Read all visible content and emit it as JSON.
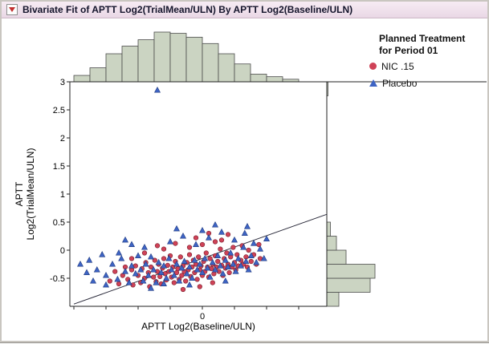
{
  "window": {
    "title": "Bivariate Fit of APTT Log2(TrialMean/ULN) By APTT Log2(Baseline/ULN)"
  },
  "legend": {
    "title_line1": "Planned Treatment",
    "title_line2": "for Period 01",
    "items": [
      {
        "label": "NIC .15",
        "marker": "circle",
        "color": "#cf4257"
      },
      {
        "label": "Placebo",
        "marker": "triangle",
        "color": "#3e64c4"
      }
    ]
  },
  "chart_data": {
    "type": "scatter",
    "title": "Bivariate Fit of APTT Log2(TrialMean/ULN) By APTT Log2(Baseline/ULN)",
    "xlabel": "APTT Log2(Baseline/ULN)",
    "ylabel_line1": "APTT",
    "ylabel_line2": "Log2(TrialMean/ULN)",
    "xlim": [
      -1.03,
      0.97
    ],
    "ylim": [
      -1.0,
      3.0
    ],
    "grid": false,
    "legend_position": "top-right",
    "colors": {
      "histogram_fill": "#cbd4c2",
      "histogram_stroke": "#4c4c4c",
      "fit_line": "#2a2a3a",
      "frame": "#222222"
    },
    "x_axis": {
      "label": "APTT Log2(Baseline/ULN)",
      "ticks": [
        -1,
        -0.75,
        -0.5,
        -0.25,
        0,
        0.25,
        0.5,
        0.75
      ],
      "tick_labels": [
        {
          "value": 0,
          "label": "0"
        }
      ]
    },
    "y_axis": {
      "ticks": [
        {
          "value": 3,
          "label": "3"
        },
        {
          "value": 2.5,
          "label": "2.5"
        },
        {
          "value": 2,
          "label": "2"
        },
        {
          "value": 1.5,
          "label": "1.5"
        },
        {
          "value": 1,
          "label": "1"
        },
        {
          "value": 0.5,
          "label": "0.5"
        },
        {
          "value": 0,
          "label": "0"
        },
        {
          "value": -0.5,
          "label": "-0.5"
        }
      ]
    },
    "fit_line": {
      "x1": -1.0,
      "y1": -0.96,
      "x2": 0.97,
      "y2": 0.64
    },
    "top_histogram": {
      "bin_start": -1.0,
      "bin_width": 0.125,
      "counts": [
        5,
        11,
        22,
        28,
        33,
        39,
        38,
        35,
        30,
        22,
        14,
        6,
        4,
        2
      ]
    },
    "right_histogram": {
      "bin_start": -1.0,
      "bin_width": 0.25,
      "counts": [
        10,
        36,
        40,
        16,
        8,
        3,
        0,
        0,
        0,
        0,
        0,
        0,
        0,
        0,
        0,
        1
      ]
    },
    "series": [
      {
        "name": "NIC .15",
        "marker": "circle",
        "color": "#cf4257",
        "edge_color": "#7a1f2d",
        "points": [
          [
            -0.72,
            -0.55
          ],
          [
            -0.68,
            -0.38
          ],
          [
            -0.65,
            -0.6
          ],
          [
            -0.62,
            -0.45
          ],
          [
            -0.6,
            -0.3
          ],
          [
            -0.58,
            -0.52
          ],
          [
            -0.55,
            -0.35
          ],
          [
            -0.54,
            -0.62
          ],
          [
            -0.52,
            -0.28
          ],
          [
            -0.5,
            -0.45
          ],
          [
            -0.48,
            -0.58
          ],
          [
            -0.47,
            -0.33
          ],
          [
            -0.45,
            -0.5
          ],
          [
            -0.44,
            -0.22
          ],
          [
            -0.42,
            -0.4
          ],
          [
            -0.41,
            -0.65
          ],
          [
            -0.4,
            -0.3
          ],
          [
            -0.38,
            -0.48
          ],
          [
            -0.37,
            -0.18
          ],
          [
            -0.36,
            -0.56
          ],
          [
            -0.35,
            -0.38
          ],
          [
            -0.34,
            -0.25
          ],
          [
            -0.33,
            -0.47
          ],
          [
            -0.32,
            -0.6
          ],
          [
            -0.31,
            -0.32
          ],
          [
            -0.3,
            -0.15
          ],
          [
            -0.29,
            -0.42
          ],
          [
            -0.28,
            -0.53
          ],
          [
            -0.27,
            -0.27
          ],
          [
            -0.26,
            -0.38
          ],
          [
            -0.25,
            -0.1
          ],
          [
            -0.24,
            -0.48
          ],
          [
            -0.23,
            -0.3
          ],
          [
            -0.22,
            -0.58
          ],
          [
            -0.21,
            -0.2
          ],
          [
            -0.2,
            -0.4
          ],
          [
            -0.19,
            -0.33
          ],
          [
            -0.18,
            -0.52
          ],
          [
            -0.17,
            -0.12
          ],
          [
            -0.16,
            -0.45
          ],
          [
            -0.15,
            -0.28
          ],
          [
            -0.14,
            -0.38
          ],
          [
            -0.13,
            -0.55
          ],
          [
            -0.12,
            -0.22
          ],
          [
            -0.11,
            -0.35
          ],
          [
            -0.1,
            -0.08
          ],
          [
            -0.09,
            -0.47
          ],
          [
            -0.08,
            -0.3
          ],
          [
            -0.07,
            -0.18
          ],
          [
            -0.06,
            -0.4
          ],
          [
            -0.05,
            -0.25
          ],
          [
            -0.04,
            -0.52
          ],
          [
            -0.03,
            -0.12
          ],
          [
            -0.02,
            -0.35
          ],
          [
            -0.01,
            -0.28
          ],
          [
            0,
            -0.45
          ],
          [
            0.01,
            -0.2
          ],
          [
            0.02,
            -0.38
          ],
          [
            0.03,
            -0.05
          ],
          [
            0.04,
            -0.3
          ],
          [
            0.05,
            -0.48
          ],
          [
            0.06,
            -0.15
          ],
          [
            0.07,
            -0.33
          ],
          [
            0.08,
            -0.25
          ],
          [
            0.09,
            -0.42
          ],
          [
            0.1,
            -0.1
          ],
          [
            0.11,
            -0.3
          ],
          [
            0.12,
            -0.2
          ],
          [
            0.13,
            -0.38
          ],
          [
            0.14,
            0.02
          ],
          [
            0.15,
            -0.27
          ],
          [
            0.16,
            -0.45
          ],
          [
            0.17,
            -0.15
          ],
          [
            0.18,
            -0.32
          ],
          [
            0.19,
            -0.05
          ],
          [
            0.2,
            -0.25
          ],
          [
            0.21,
            -0.4
          ],
          [
            0.22,
            -0.12
          ],
          [
            0.23,
            -0.3
          ],
          [
            0.24,
            0.05
          ],
          [
            0.25,
            -0.22
          ],
          [
            0.26,
            -0.35
          ],
          [
            0.27,
            -0.08
          ],
          [
            0.28,
            -0.28
          ],
          [
            0.3,
            -0.18
          ],
          [
            0.31,
            0.08
          ],
          [
            0.32,
            -0.25
          ],
          [
            0.34,
            -0.12
          ],
          [
            0.35,
            -0.3
          ],
          [
            0.36,
            0
          ],
          [
            0.38,
            -0.2
          ],
          [
            0.4,
            -0.08
          ],
          [
            0.42,
            -0.25
          ],
          [
            0.44,
            0.1
          ],
          [
            0.45,
            -0.15
          ],
          [
            0.2,
            0.28
          ],
          [
            0.1,
            0.15
          ],
          [
            0,
            0.1
          ],
          [
            -0.1,
            0.05
          ],
          [
            -0.21,
            0.12
          ],
          [
            -0.3,
            0.02
          ],
          [
            -0.05,
            0.22
          ],
          [
            0.05,
            0.3
          ],
          [
            0.15,
            0.18
          ],
          [
            -0.15,
            -0.7
          ],
          [
            -0.02,
            -0.65
          ],
          [
            0.08,
            -0.58
          ],
          [
            -0.55,
            -0.15
          ],
          [
            -0.45,
            -0.05
          ],
          [
            -0.35,
            0.08
          ]
        ]
      },
      {
        "name": "Placebo",
        "marker": "triangle",
        "color": "#3e64c4",
        "edge_color": "#1f3a80",
        "points": [
          [
            -0.95,
            -0.25
          ],
          [
            -0.9,
            -0.4
          ],
          [
            -0.88,
            -0.18
          ],
          [
            -0.82,
            -0.35
          ],
          [
            -0.78,
            -0.08
          ],
          [
            -0.75,
            -0.45
          ],
          [
            -0.7,
            -0.25
          ],
          [
            -0.66,
            -0.52
          ],
          [
            -0.63,
            -0.15
          ],
          [
            -0.6,
            -0.38
          ],
          [
            -0.57,
            -0.58
          ],
          [
            -0.55,
            -0.28
          ],
          [
            -0.52,
            -0.42
          ],
          [
            -0.5,
            -0.1
          ],
          [
            -0.48,
            -0.35
          ],
          [
            -0.46,
            -0.55
          ],
          [
            -0.44,
            -0.25
          ],
          [
            -0.42,
            -0.45
          ],
          [
            -0.4,
            -0.12
          ],
          [
            -0.38,
            -0.35
          ],
          [
            -0.36,
            -0.58
          ],
          [
            -0.34,
            -0.22
          ],
          [
            -0.32,
            -0.4
          ],
          [
            -0.3,
            -0.28
          ],
          [
            -0.28,
            -0.5
          ],
          [
            -0.26,
            -0.15
          ],
          [
            -0.24,
            -0.35
          ],
          [
            -0.22,
            -0.45
          ],
          [
            -0.2,
            -0.25
          ],
          [
            -0.18,
            -0.55
          ],
          [
            -0.16,
            -0.32
          ],
          [
            -0.14,
            -0.2
          ],
          [
            -0.12,
            -0.42
          ],
          [
            -0.1,
            -0.3
          ],
          [
            -0.08,
            -0.5
          ],
          [
            -0.06,
            -0.18
          ],
          [
            -0.04,
            -0.35
          ],
          [
            -0.02,
            -0.25
          ],
          [
            0,
            -0.4
          ],
          [
            0.02,
            -0.15
          ],
          [
            0.04,
            -0.32
          ],
          [
            0.06,
            -0.48
          ],
          [
            0.08,
            -0.22
          ],
          [
            0.1,
            -0.35
          ],
          [
            0.12,
            -0.1
          ],
          [
            0.14,
            -0.28
          ],
          [
            0.16,
            -0.42
          ],
          [
            0.18,
            -0.18
          ],
          [
            0.2,
            -0.3
          ],
          [
            0.22,
            -0.05
          ],
          [
            0.24,
            -0.25
          ],
          [
            0.26,
            -0.38
          ],
          [
            0.28,
            -0.15
          ],
          [
            0.3,
            -0.28
          ],
          [
            0.32,
            0.05
          ],
          [
            0.34,
            -0.2
          ],
          [
            0.36,
            -0.35
          ],
          [
            0.38,
            -0.1
          ],
          [
            0.4,
            0.12
          ],
          [
            0.42,
            -0.22
          ],
          [
            0.45,
            0.02
          ],
          [
            0.48,
            -0.15
          ],
          [
            0.5,
            0.2
          ],
          [
            -0.35,
            2.85
          ],
          [
            -0.25,
            0.15
          ],
          [
            -0.15,
            0.25
          ],
          [
            -0.05,
            0.1
          ],
          [
            0.05,
            0.22
          ],
          [
            0.15,
            0.32
          ],
          [
            0.25,
            0.18
          ],
          [
            -0.45,
            0.05
          ],
          [
            -0.55,
            0.1
          ],
          [
            -0.65,
            -0.05
          ],
          [
            0.1,
            0.45
          ],
          [
            0.33,
            0.3
          ],
          [
            -0.2,
            0.38
          ],
          [
            0,
            0.35
          ],
          [
            -0.75,
            -0.62
          ],
          [
            -0.4,
            -0.68
          ],
          [
            -0.1,
            -0.62
          ],
          [
            0.18,
            -0.55
          ],
          [
            -0.3,
            -0.6
          ],
          [
            -0.85,
            -0.55
          ],
          [
            0.35,
            0.42
          ],
          [
            -0.6,
            0.18
          ]
        ]
      }
    ]
  }
}
